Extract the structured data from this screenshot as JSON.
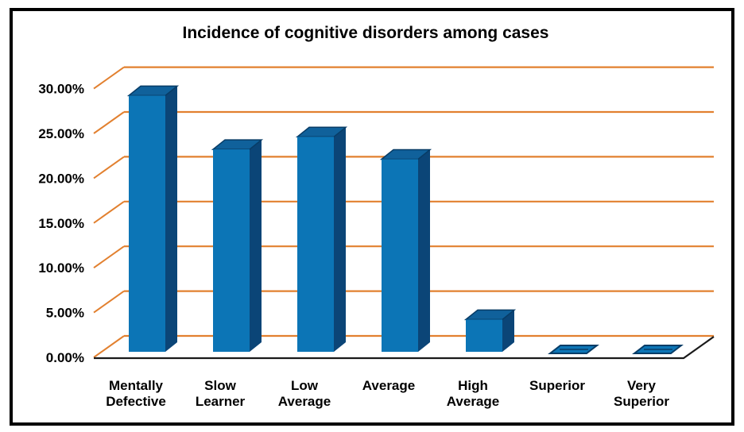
{
  "chart_data": {
    "type": "bar",
    "style": "3d-column",
    "title": "Incidence of cognitive disorders among cases",
    "categories": [
      "Mentally Defective",
      "Slow Learner",
      "Low Average",
      "Average",
      "High Average",
      "Superior",
      "Very Superior"
    ],
    "category_label_lines": [
      [
        "Mentally",
        "Defective"
      ],
      [
        "Slow",
        "Learner"
      ],
      [
        "Low",
        "Average"
      ],
      [
        "Average"
      ],
      [
        "High",
        "Average"
      ],
      [
        "Superior"
      ],
      [
        "Very",
        "Superior"
      ]
    ],
    "values": [
      28.6,
      22.6,
      24.0,
      21.5,
      3.6,
      0.0,
      0.0
    ],
    "unit": "%",
    "xlabel": "",
    "ylabel": "",
    "y_ticks": [
      "0.00%",
      "5.00%",
      "10.00%",
      "15.00%",
      "20.00%",
      "25.00%",
      "30.00%"
    ],
    "y_tick_values": [
      0,
      5,
      10,
      15,
      20,
      25,
      30
    ],
    "ylim": [
      0,
      30
    ],
    "grid": true,
    "legend": "none",
    "colors": {
      "bar_front": "#0C75B6",
      "bar_side": "#0B4577",
      "bar_top": "#10619B",
      "bar_outline": "#083C66",
      "gridline": "#E2802F",
      "axis_line": "#1A1A1A",
      "border": "#000000",
      "background": "#FFFFFF",
      "text": "#000000"
    }
  }
}
